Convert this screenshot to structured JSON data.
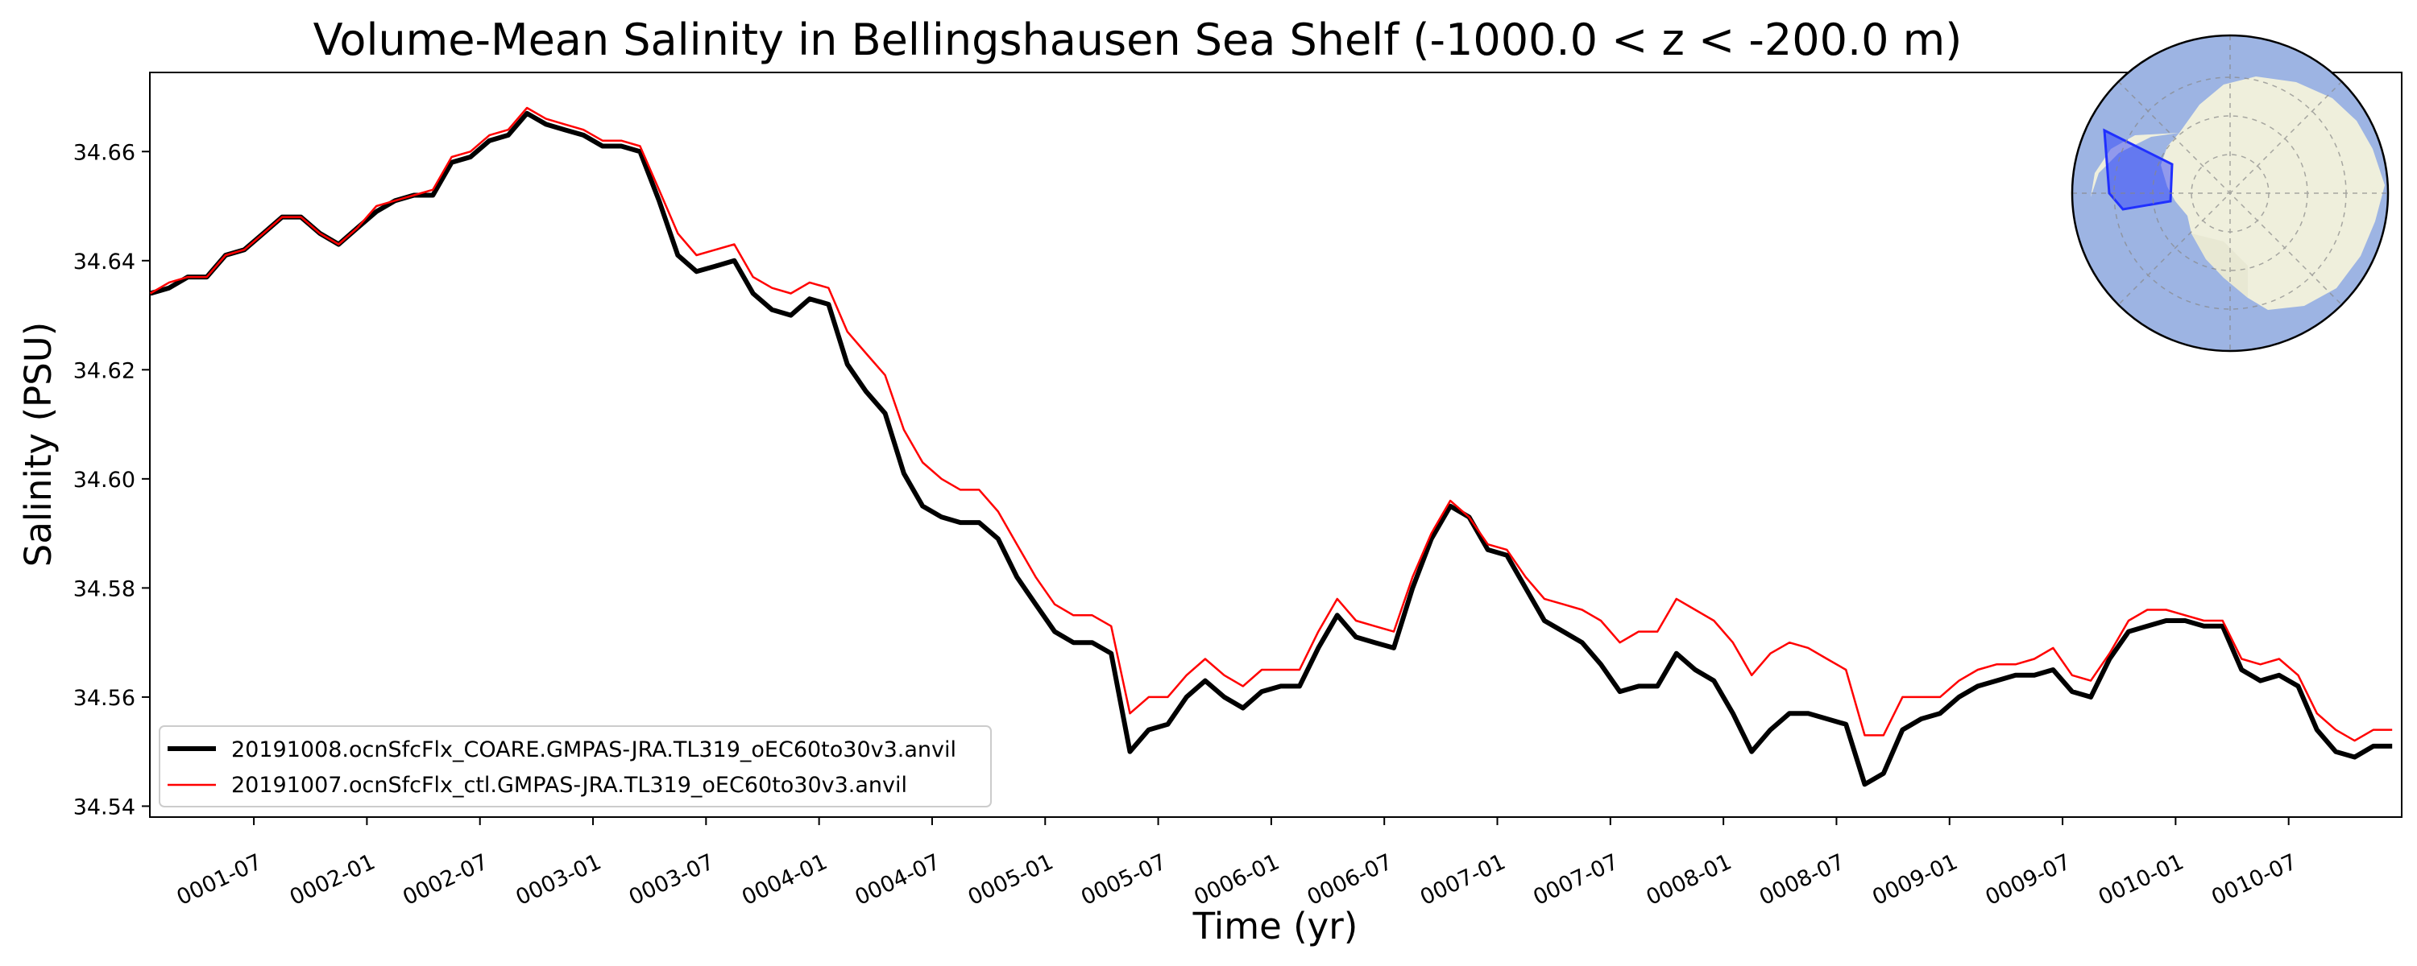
{
  "chart_data": {
    "type": "line",
    "title": "Volume-Mean Salinity in Bellingshausen Sea Shelf (-1000.0 < z < -200.0 m)",
    "xlabel": "Time (yr)",
    "ylabel": "Salinity (PSU)",
    "xlim": [
      0.04,
      10.0
    ],
    "ylim": [
      34.538,
      34.6745
    ],
    "y_ticks": [
      34.54,
      34.56,
      34.58,
      34.6,
      34.62,
      34.64,
      34.66
    ],
    "y_tick_labels": [
      "34.54",
      "34.56",
      "34.58",
      "34.60",
      "34.62",
      "34.64",
      "34.66"
    ],
    "x_ticks": [
      0.5,
      1.0,
      1.5,
      2.0,
      2.5,
      3.0,
      3.5,
      4.0,
      4.5,
      5.0,
      5.5,
      6.0,
      6.5,
      7.0,
      7.5,
      8.0,
      8.5,
      9.0,
      9.5
    ],
    "x_tick_labels": [
      "0001-07",
      "0002-01",
      "0002-07",
      "0003-01",
      "0003-07",
      "0004-01",
      "0004-07",
      "0005-01",
      "0005-07",
      "0006-01",
      "0006-07",
      "0007-01",
      "0007-07",
      "0008-01",
      "0008-07",
      "0009-01",
      "0009-07",
      "0010-01",
      "0010-07"
    ],
    "grid": false,
    "legend_position": "lower-left",
    "x": [
      0.042,
      0.125,
      0.208,
      0.292,
      0.375,
      0.458,
      0.542,
      0.625,
      0.708,
      0.792,
      0.875,
      0.958,
      1.042,
      1.125,
      1.208,
      1.292,
      1.375,
      1.458,
      1.542,
      1.625,
      1.708,
      1.792,
      1.875,
      1.958,
      2.042,
      2.125,
      2.208,
      2.292,
      2.375,
      2.458,
      2.542,
      2.625,
      2.708,
      2.792,
      2.875,
      2.958,
      3.042,
      3.125,
      3.208,
      3.292,
      3.375,
      3.458,
      3.542,
      3.625,
      3.708,
      3.792,
      3.875,
      3.958,
      4.042,
      4.125,
      4.208,
      4.292,
      4.375,
      4.458,
      4.542,
      4.625,
      4.708,
      4.792,
      4.875,
      4.958,
      5.042,
      5.125,
      5.208,
      5.292,
      5.375,
      5.458,
      5.542,
      5.625,
      5.708,
      5.792,
      5.875,
      5.958,
      6.042,
      6.125,
      6.208,
      6.292,
      6.375,
      6.458,
      6.542,
      6.625,
      6.708,
      6.792,
      6.875,
      6.958,
      7.042,
      7.125,
      7.208,
      7.292,
      7.375,
      7.458,
      7.542,
      7.625,
      7.708,
      7.792,
      7.875,
      7.958,
      8.042,
      8.125,
      8.208,
      8.292,
      8.375,
      8.458,
      8.542,
      8.625,
      8.708,
      8.792,
      8.875,
      8.958,
      9.042,
      9.125,
      9.208,
      9.292,
      9.375,
      9.458,
      9.542,
      9.625,
      9.708,
      9.792,
      9.875,
      9.958
    ],
    "series": [
      {
        "name": "20191008.ocnSfcFlx_COARE.GMPAS-JRA.TL319_oEC60to30v3.anvil",
        "color": "#000000",
        "linewidth": 6,
        "values": [
          34.634,
          34.635,
          34.637,
          34.637,
          34.641,
          34.642,
          34.645,
          34.648,
          34.648,
          34.645,
          34.643,
          34.646,
          34.649,
          34.651,
          34.652,
          34.652,
          34.658,
          34.659,
          34.662,
          34.663,
          34.667,
          34.665,
          34.664,
          34.663,
          34.661,
          34.661,
          34.66,
          34.651,
          34.641,
          34.638,
          34.639,
          34.64,
          34.634,
          34.631,
          34.63,
          34.633,
          34.632,
          34.621,
          34.616,
          34.612,
          34.601,
          34.595,
          34.593,
          34.592,
          34.592,
          34.589,
          34.582,
          34.577,
          34.572,
          34.57,
          34.57,
          34.568,
          34.55,
          34.554,
          34.555,
          34.56,
          34.563,
          34.56,
          34.558,
          34.561,
          34.562,
          34.562,
          34.569,
          34.575,
          34.571,
          34.57,
          34.569,
          34.58,
          34.589,
          34.595,
          34.593,
          34.587,
          34.586,
          34.58,
          34.574,
          34.572,
          34.57,
          34.566,
          34.561,
          34.562,
          34.562,
          34.568,
          34.565,
          34.563,
          34.557,
          34.55,
          34.554,
          34.557,
          34.557,
          34.556,
          34.555,
          34.544,
          34.546,
          34.554,
          34.556,
          34.557,
          34.56,
          34.562,
          34.563,
          34.564,
          34.564,
          34.565,
          34.561,
          34.56,
          34.567,
          34.572,
          34.573,
          34.574,
          34.574,
          34.573,
          34.573,
          34.565,
          34.563,
          34.564,
          34.562,
          34.554,
          34.55,
          34.549,
          34.551,
          34.551
        ]
      },
      {
        "name": "20191007.ocnSfcFlx_ctl.GMPAS-JRA.TL319_oEC60to30v3.anvil",
        "color": "#ff0000",
        "linewidth": 2.5,
        "values": [
          34.634,
          34.636,
          34.637,
          34.637,
          34.641,
          34.642,
          34.645,
          34.648,
          34.648,
          34.645,
          34.643,
          34.646,
          34.65,
          34.651,
          34.652,
          34.653,
          34.659,
          34.66,
          34.663,
          34.664,
          34.668,
          34.666,
          34.665,
          34.664,
          34.662,
          34.662,
          34.661,
          34.653,
          34.645,
          34.641,
          34.642,
          34.643,
          34.637,
          34.635,
          34.634,
          34.636,
          34.635,
          34.627,
          34.623,
          34.619,
          34.609,
          34.603,
          34.6,
          34.598,
          34.598,
          34.594,
          34.588,
          34.582,
          34.577,
          34.575,
          34.575,
          34.573,
          34.557,
          34.56,
          34.56,
          34.564,
          34.567,
          34.564,
          34.562,
          34.565,
          34.565,
          34.565,
          34.572,
          34.578,
          34.574,
          34.573,
          34.572,
          34.582,
          34.59,
          34.596,
          34.593,
          34.588,
          34.587,
          34.582,
          34.578,
          34.577,
          34.576,
          34.574,
          34.57,
          34.572,
          34.572,
          34.578,
          34.576,
          34.574,
          34.57,
          34.564,
          34.568,
          34.57,
          34.569,
          34.567,
          34.565,
          34.553,
          34.553,
          34.56,
          34.56,
          34.56,
          34.563,
          34.565,
          34.566,
          34.566,
          34.567,
          34.569,
          34.564,
          34.563,
          34.568,
          34.574,
          34.576,
          34.576,
          34.575,
          34.574,
          34.574,
          34.567,
          34.566,
          34.567,
          34.564,
          34.557,
          34.554,
          34.552,
          34.554,
          34.554
        ]
      }
    ]
  },
  "colors": {
    "ocean": "#9db4e3",
    "land": "#efefdc",
    "region": "#2030ff"
  }
}
